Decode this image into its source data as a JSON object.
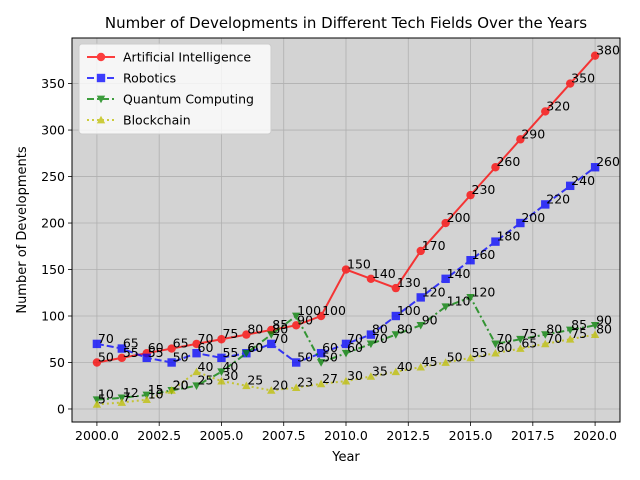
{
  "chart_data": {
    "type": "line",
    "title": "Number of Developments in Different Tech Fields Over the Years",
    "xlabel": "Year",
    "ylabel": "Number of Developments",
    "x": [
      2000,
      2001,
      2002,
      2003,
      2004,
      2005,
      2006,
      2007,
      2008,
      2009,
      2010,
      2011,
      2012,
      2013,
      2014,
      2015,
      2016,
      2017,
      2018,
      2019,
      2020
    ],
    "xlim": [
      1999,
      2021
    ],
    "ylim": [
      -14,
      399
    ],
    "xticks": [
      2000.0,
      2002.5,
      2005.0,
      2007.5,
      2010.0,
      2012.5,
      2015.0,
      2017.5,
      2020.0
    ],
    "xtick_labels": [
      "2000.0",
      "2002.5",
      "2005.0",
      "2007.5",
      "2010.0",
      "2012.5",
      "2015.0",
      "2017.5",
      "2020.0"
    ],
    "yticks": [
      0,
      50,
      100,
      150,
      200,
      250,
      300,
      350
    ],
    "ytick_labels": [
      "0",
      "50",
      "100",
      "150",
      "200",
      "250",
      "300",
      "350"
    ],
    "grid": true,
    "legend_position": "top-left",
    "background": "#d3d3d3",
    "series": [
      {
        "name": "Artificial Intelligence",
        "color": "#ff0000",
        "marker": "circle",
        "linestyle": "solid",
        "values": [
          50,
          55,
          60,
          65,
          70,
          75,
          80,
          85,
          90,
          100,
          150,
          140,
          130,
          170,
          200,
          230,
          260,
          290,
          320,
          350,
          380
        ]
      },
      {
        "name": "Robotics",
        "color": "#0000ff",
        "marker": "square",
        "linestyle": "dashed",
        "values": [
          70,
          65,
          55,
          50,
          60,
          55,
          60,
          70,
          50,
          60,
          70,
          80,
          100,
          120,
          140,
          160,
          180,
          200,
          220,
          240,
          260
        ]
      },
      {
        "name": "Quantum Computing",
        "color": "#008000",
        "marker": "triangle-down",
        "linestyle": "dashdot",
        "values": [
          10,
          12,
          15,
          20,
          25,
          40,
          60,
          80,
          100,
          50,
          60,
          70,
          80,
          90,
          110,
          120,
          70,
          75,
          80,
          85,
          90
        ]
      },
      {
        "name": "Blockchain",
        "color": "#bfbf00",
        "marker": "triangle-up",
        "linestyle": "dotted",
        "values": [
          5,
          7,
          10,
          20,
          40,
          30,
          25,
          20,
          23,
          27,
          30,
          35,
          40,
          45,
          50,
          55,
          60,
          65,
          70,
          75,
          80
        ]
      }
    ]
  }
}
